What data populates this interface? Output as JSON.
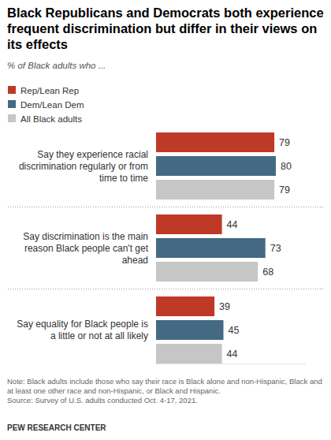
{
  "chart_data": {
    "type": "bar",
    "orientation": "horizontal",
    "title": "Black Republicans and Democrats both experience frequent discrimination but differ in their views on its effects",
    "subtitle": "% of Black adults who ...",
    "categories": [
      "Say they experience racial discrimination regularly or from time to time",
      "Say discrimination is the main reason Black people can't get ahead",
      "Say equality for Black people is a little or not at all likely"
    ],
    "series": [
      {
        "name": "Rep/Lean Rep",
        "color": "#bf3927",
        "values": [
          79,
          44,
          39
        ]
      },
      {
        "name": "Dem/Lean Dem",
        "color": "#436983",
        "values": [
          80,
          73,
          45
        ]
      },
      {
        "name": "All Black adults",
        "color": "#c6c6c6",
        "values": [
          79,
          68,
          44
        ]
      }
    ],
    "xlim": [
      0,
      100
    ],
    "data_labels": true,
    "tick_labels": false,
    "grid": false,
    "note": "Note: Black adults include those who say their race is Black alone and non-Hispanic, Black and at least one other race and non-Hispanic, or Black and Hispanic.",
    "source": "Source: Survey of U.S. adults conducted Oct. 4-17, 2021.",
    "footer": "PEW RESEARCH CENTER"
  }
}
